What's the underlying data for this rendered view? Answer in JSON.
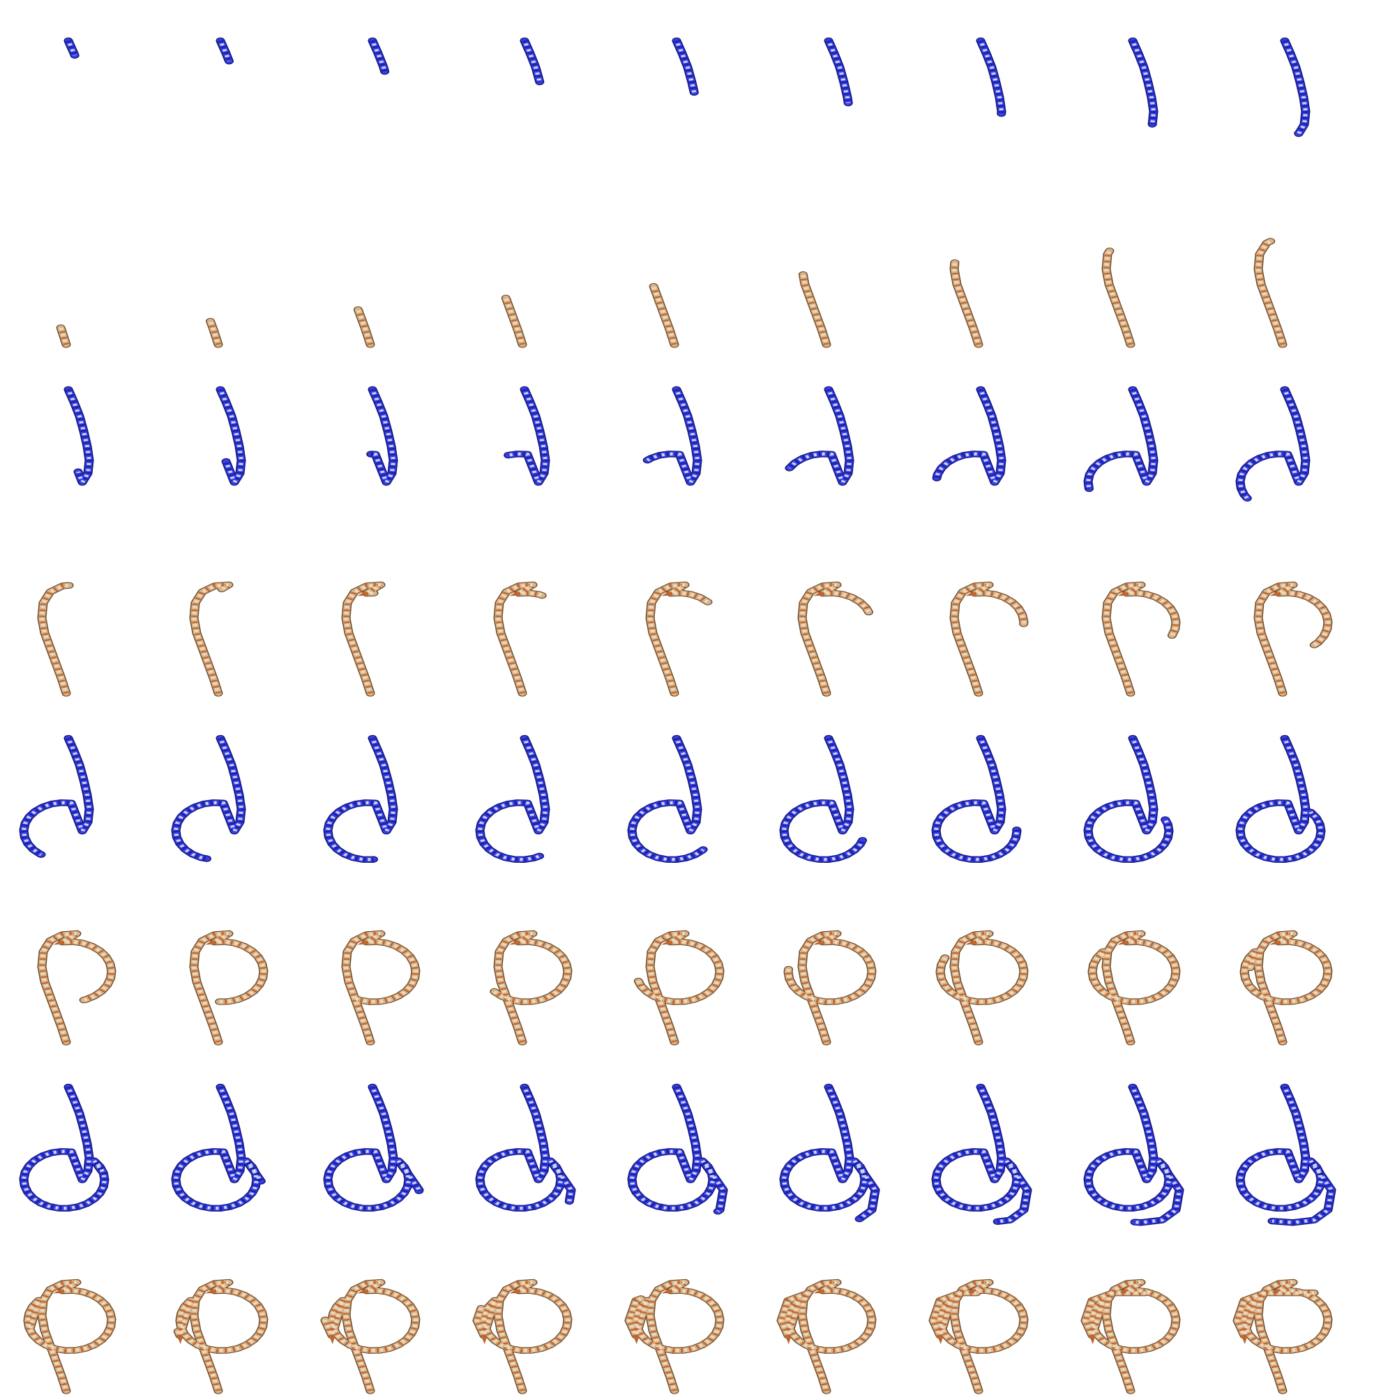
{
  "figure": {
    "layout": {
      "rows": 4,
      "columns": 9
    },
    "colors": {
      "background": "#ffffff",
      "blue_rope": {
        "base": "#3a3ee0",
        "dark": "#1a1fa8",
        "light": "#c8d8ff",
        "edge": "#0e1270"
      },
      "tan_rope": {
        "base": "#d9b48a",
        "dark": "#c0652e",
        "light": "#e9ddc6",
        "edge": "#6b4a2a"
      }
    },
    "rope_names": [
      "blue-rope",
      "tan-rope"
    ],
    "frames": [
      {
        "row": 1,
        "step": 1
      },
      {
        "row": 1,
        "step": 2
      },
      {
        "row": 1,
        "step": 3
      },
      {
        "row": 1,
        "step": 4
      },
      {
        "row": 1,
        "step": 5
      },
      {
        "row": 1,
        "step": 6
      },
      {
        "row": 1,
        "step": 7
      },
      {
        "row": 1,
        "step": 8
      },
      {
        "row": 1,
        "step": 9
      },
      {
        "row": 2,
        "step": 10
      },
      {
        "row": 2,
        "step": 11
      },
      {
        "row": 2,
        "step": 12
      },
      {
        "row": 2,
        "step": 13
      },
      {
        "row": 2,
        "step": 14
      },
      {
        "row": 2,
        "step": 15
      },
      {
        "row": 2,
        "step": 16
      },
      {
        "row": 2,
        "step": 17
      },
      {
        "row": 2,
        "step": 18
      },
      {
        "row": 3,
        "step": 19
      },
      {
        "row": 3,
        "step": 20
      },
      {
        "row": 3,
        "step": 21
      },
      {
        "row": 3,
        "step": 22
      },
      {
        "row": 3,
        "step": 23
      },
      {
        "row": 3,
        "step": 24
      },
      {
        "row": 3,
        "step": 25
      },
      {
        "row": 3,
        "step": 26
      },
      {
        "row": 3,
        "step": 27
      },
      {
        "row": 4,
        "step": 28
      },
      {
        "row": 4,
        "step": 29
      },
      {
        "row": 4,
        "step": 30
      },
      {
        "row": 4,
        "step": 31
      },
      {
        "row": 4,
        "step": 32
      },
      {
        "row": 4,
        "step": 33
      },
      {
        "row": 4,
        "step": 34
      },
      {
        "row": 4,
        "step": 35
      },
      {
        "row": 4,
        "step": 36
      }
    ]
  }
}
